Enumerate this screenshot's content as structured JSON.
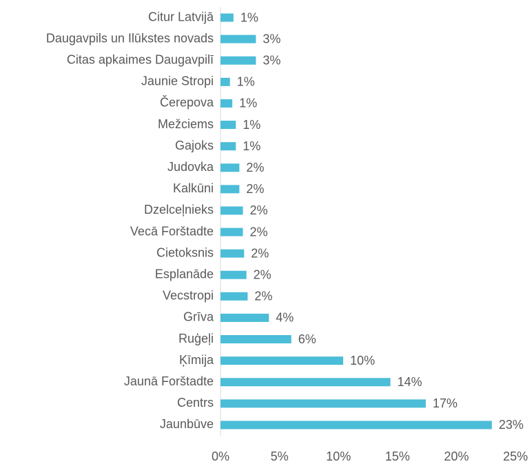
{
  "chart_data": {
    "type": "barh",
    "categories": [
      "Citur Latvijā",
      "Daugavpils un Ilūkstes novads",
      "Citas apkaimes Daugavpilī",
      "Jaunie Stropi",
      "Čerepova",
      "Mežciems",
      "Gajoks",
      "Judovka",
      "Kalkūni",
      "Dzelceļnieks",
      "Vecā Forštadte",
      "Cietoksnis",
      "Esplanāde",
      "Vecstropi",
      "Grīva",
      "Ruģeļi",
      "Ķīmija",
      "Jaunā Forštadte",
      "Centrs",
      "Jaunbūve"
    ],
    "values": [
      1.1,
      3.0,
      3.0,
      0.8,
      1.0,
      1.3,
      1.3,
      1.6,
      1.6,
      1.9,
      1.9,
      2.0,
      2.2,
      2.3,
      4.1,
      6.0,
      10.4,
      14.4,
      17.4,
      23.0
    ],
    "value_labels": [
      "1%",
      "3%",
      "3%",
      "1%",
      "1%",
      "1%",
      "1%",
      "2%",
      "2%",
      "2%",
      "2%",
      "2%",
      "2%",
      "2%",
      "4%",
      "6%",
      "10%",
      "14%",
      "17%",
      "23%"
    ],
    "color": "#4bbdd8",
    "xlim": [
      0,
      25
    ],
    "xticks": [
      {
        "value": 0,
        "label": "0%"
      },
      {
        "value": 5,
        "label": "5%"
      },
      {
        "value": 10,
        "label": "10%"
      },
      {
        "value": 15,
        "label": "15%"
      },
      {
        "value": 20,
        "label": "20%"
      },
      {
        "value": 25,
        "label": "25%"
      }
    ],
    "grid": false
  }
}
